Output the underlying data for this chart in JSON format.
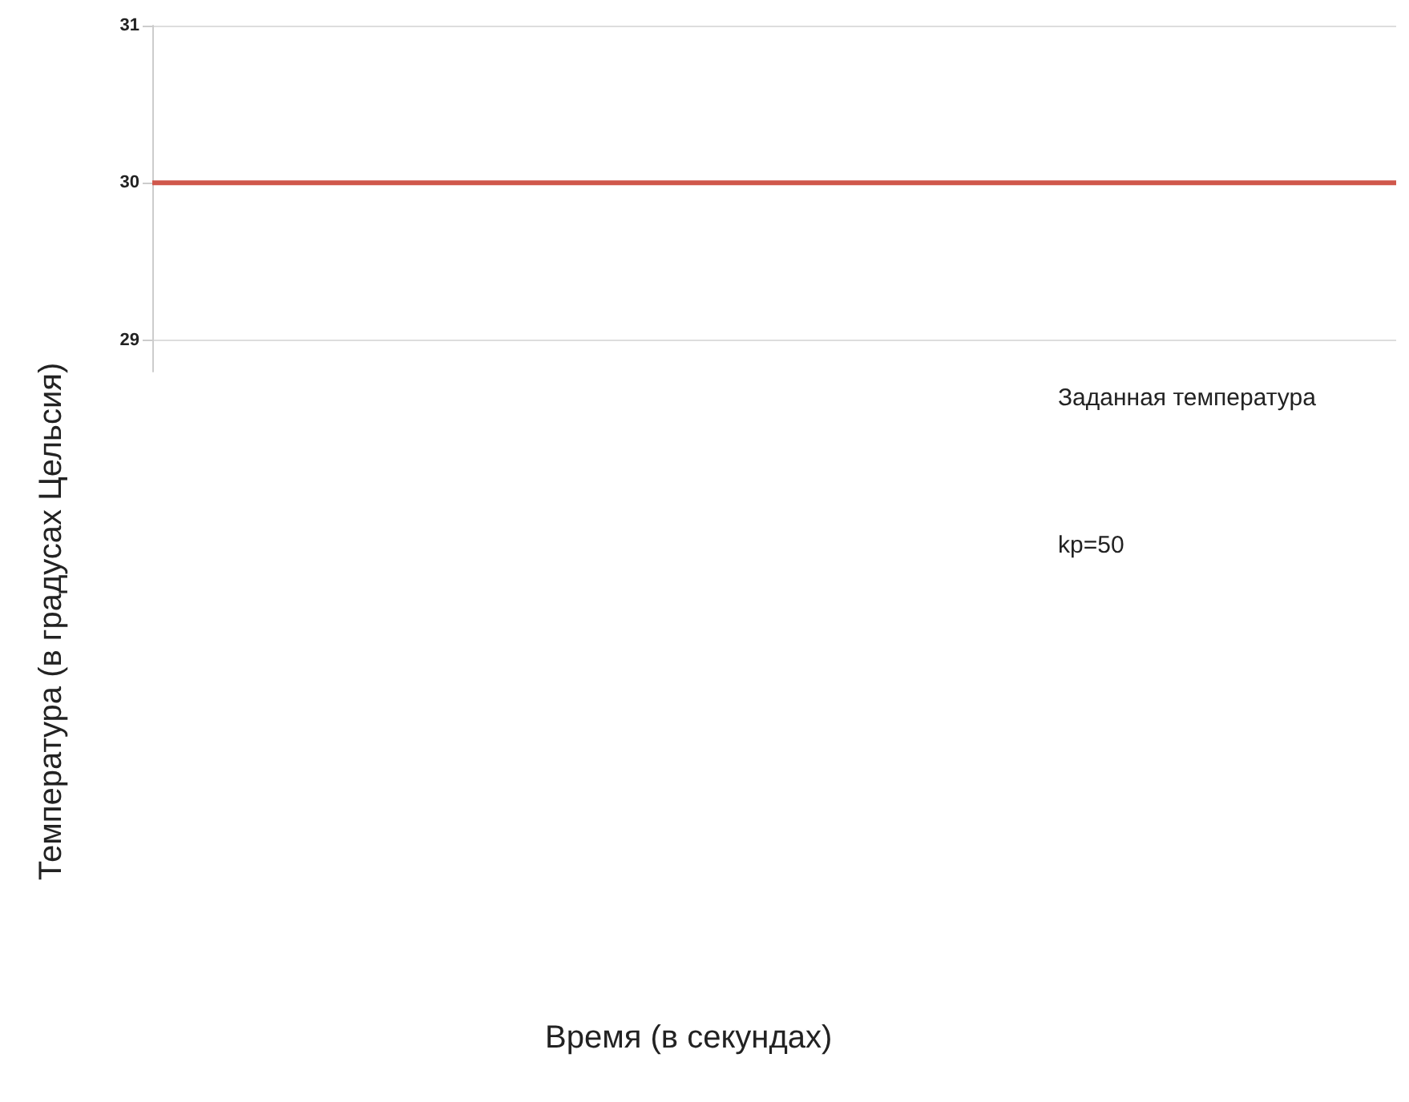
{
  "chart_data": {
    "type": "line",
    "ylabel": "Температура (в градусах Цельсия)",
    "categories": [
      null,
      null,
      null,
      null,
      null,
      null,
      null,
      null,
      null,
      null
    ],
    "series": [
      {
        "color": "#d0574b",
        "values": [
          30,
          30,
          30,
          30,
          30,
          30,
          30,
          30,
          30,
          30
        ]
      }
    ],
    "ylim": [
      28.8,
      31
    ],
    "yticks": [
      29,
      30,
      31
    ],
    "grid": "y",
    "marker": "none",
    "line_style": "solid",
    "annotations": [
      "Заданная температура",
      "kp=50",
      "Время (в секундах)"
    ]
  }
}
